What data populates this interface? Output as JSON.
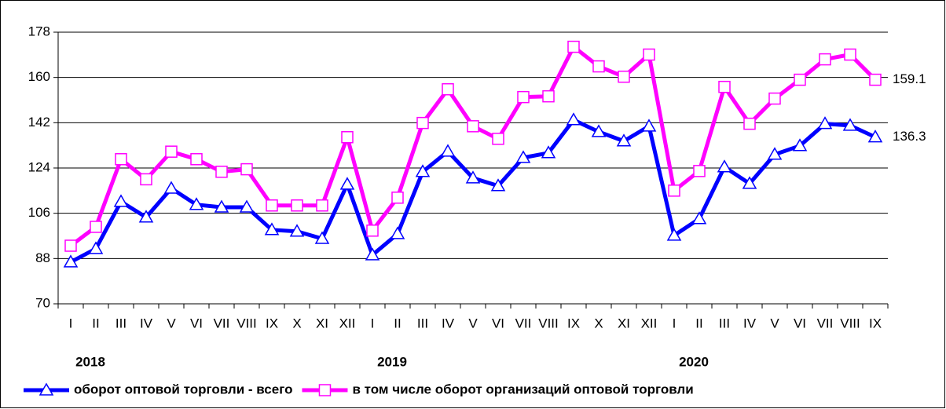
{
  "chart_data": {
    "type": "line",
    "categories": [
      "I",
      "II",
      "III",
      "IV",
      "V",
      "VI",
      "VII",
      "VIII",
      "IX",
      "X",
      "XI",
      "XII",
      "I",
      "II",
      "III",
      "IV",
      "V",
      "VI",
      "VII",
      "VIII",
      "IX",
      "X",
      "XI",
      "XII",
      "I",
      "II",
      "III",
      "IV",
      "V",
      "VI",
      "VII",
      "VIII",
      "IX"
    ],
    "groups": [
      {
        "label": "2018",
        "start": 0
      },
      {
        "label": "2019",
        "start": 12
      },
      {
        "label": "2020",
        "start": 24
      }
    ],
    "series": [
      {
        "name": "оборот оптовой торговли - всего",
        "color": "#0000ff",
        "marker": "triangle",
        "values": [
          86.6,
          91.9,
          110.6,
          104.4,
          115.9,
          109.4,
          108.4,
          108.4,
          99.4,
          98.8,
          95.9,
          117.5,
          89.4,
          97.8,
          122.5,
          130.6,
          120,
          116.9,
          128.1,
          130,
          143.1,
          138.4,
          134.7,
          140.6,
          97.2,
          103.8,
          124.4,
          117.8,
          129.4,
          132.8,
          141.6,
          140.9,
          136.3
        ]
      },
      {
        "name": "в том числе оборот организаций оптовой торговли",
        "color": "#ff00ff",
        "marker": "square",
        "values": [
          93.1,
          100.6,
          127.5,
          119.5,
          130.5,
          127.5,
          122.5,
          123.5,
          109.1,
          109.1,
          109.1,
          136.25,
          99.1,
          112.2,
          141.9,
          155.3,
          140.6,
          135.6,
          152.2,
          152.5,
          172.2,
          164.4,
          160.3,
          169.1,
          115,
          122.8,
          156.25,
          141.6,
          151.6,
          159.1,
          167.2,
          169.1,
          159.1
        ]
      }
    ],
    "ylim": [
      70,
      178
    ],
    "yticks": [
      70,
      88,
      106,
      124,
      142,
      160,
      178
    ],
    "grid": true,
    "legend": "bottom"
  }
}
